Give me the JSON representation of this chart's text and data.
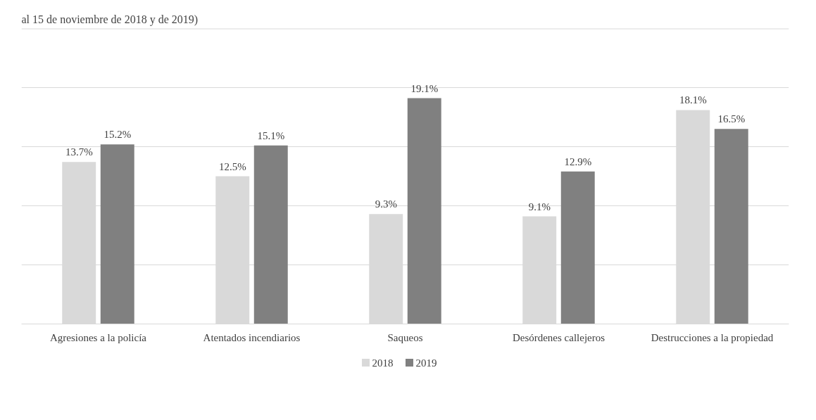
{
  "chart_data": {
    "type": "bar",
    "title": "al 15 de noviembre de 2018 y de 2019)",
    "categories": [
      "Agresiones a la policía",
      "Atentados incendiarios",
      "Saqueos",
      "Desórdenes callejeros",
      "Destrucciones a la propiedad"
    ],
    "series": [
      {
        "name": "2018",
        "color": "#d9d9d9",
        "values": [
          13.7,
          12.5,
          9.3,
          9.1,
          18.1
        ],
        "value_labels": [
          "13.7%",
          "12.5%",
          "9.3%",
          "9.1%",
          "18.1%"
        ]
      },
      {
        "name": "2019",
        "color": "#808080",
        "values": [
          15.2,
          15.1,
          19.1,
          12.9,
          16.5
        ],
        "value_labels": [
          "15.2%",
          "15.1%",
          "19.1%",
          "12.9%",
          "16.5%"
        ]
      }
    ],
    "ylim": [
      0,
      25
    ],
    "yticks": [
      {
        "value": 0,
        "label": null
      },
      {
        "value": 5,
        "label": null
      },
      {
        "value": 10,
        "label": null
      },
      {
        "value": 15,
        "label": null
      },
      {
        "value": 20,
        "label": null
      },
      {
        "value": 25,
        "label": null
      }
    ],
    "tick_labels": "x",
    "grid": "y",
    "legend": "bottom"
  }
}
